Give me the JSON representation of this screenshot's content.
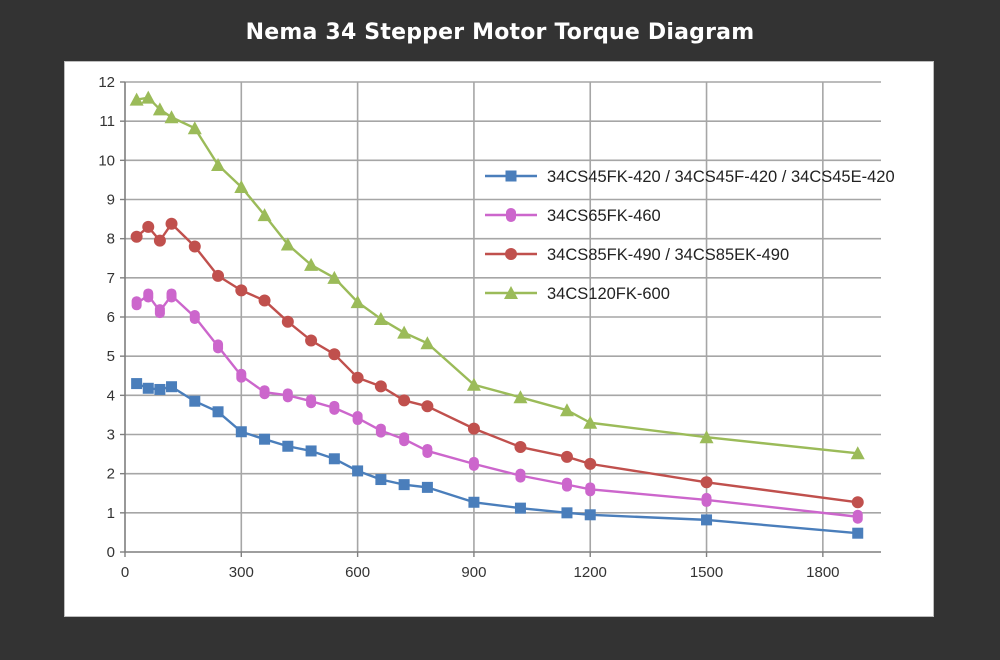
{
  "title": "Nema 34 Stepper Motor Torque Diagram",
  "colors": {
    "background": "#333333",
    "panel": "#ffffff",
    "grid": "#a6a6a6"
  },
  "chart_data": {
    "type": "line",
    "title": "",
    "xlabel": "",
    "ylabel": "",
    "xlim": [
      0,
      1950
    ],
    "ylim": [
      0,
      12
    ],
    "x_ticks": [
      0,
      300,
      600,
      900,
      1200,
      1500,
      1800
    ],
    "y_ticks": [
      0,
      1,
      2,
      3,
      4,
      5,
      6,
      7,
      8,
      9,
      10,
      11,
      12
    ],
    "grid": true,
    "legend_position": "right",
    "series": [
      {
        "name": "34CS45FK-420 / 34CS45F-420 / 34CS45E-420",
        "color": "#4a7ebb",
        "marker": "square",
        "x": [
          30,
          60,
          90,
          120,
          180,
          240,
          300,
          360,
          420,
          480,
          540,
          600,
          660,
          720,
          780,
          900,
          1020,
          1140,
          1200,
          1500,
          1890
        ],
        "y": [
          4.3,
          4.18,
          4.15,
          4.22,
          3.85,
          3.58,
          3.07,
          2.88,
          2.7,
          2.58,
          2.38,
          2.07,
          1.85,
          1.72,
          1.65,
          1.27,
          1.12,
          1.0,
          0.95,
          0.82,
          0.48
        ]
      },
      {
        "name": "34CS65FK-460",
        "color": "#cc66cc",
        "marker": "capsule",
        "x": [
          30,
          60,
          90,
          120,
          180,
          240,
          300,
          360,
          420,
          480,
          540,
          600,
          660,
          720,
          780,
          900,
          1020,
          1140,
          1200,
          1500,
          1890
        ],
        "y": [
          6.35,
          6.55,
          6.15,
          6.55,
          6.0,
          5.25,
          4.5,
          4.08,
          4.0,
          3.85,
          3.68,
          3.42,
          3.1,
          2.88,
          2.58,
          2.25,
          1.95,
          1.72,
          1.6,
          1.33,
          0.9
        ]
      },
      {
        "name": "34CS85FK-490 / 34CS85EK-490",
        "color": "#c0504d",
        "marker": "circle",
        "x": [
          30,
          60,
          90,
          120,
          180,
          240,
          300,
          360,
          420,
          480,
          540,
          600,
          660,
          720,
          780,
          900,
          1020,
          1140,
          1200,
          1500,
          1890
        ],
        "y": [
          8.05,
          8.3,
          7.95,
          8.38,
          7.8,
          7.05,
          6.68,
          6.42,
          5.88,
          5.4,
          5.05,
          4.45,
          4.23,
          3.87,
          3.72,
          3.15,
          2.68,
          2.43,
          2.25,
          1.78,
          1.27
        ]
      },
      {
        "name": "34CS120FK-600",
        "color": "#9bbb59",
        "marker": "triangle",
        "x": [
          30,
          60,
          90,
          120,
          180,
          240,
          300,
          360,
          420,
          480,
          540,
          600,
          660,
          720,
          780,
          900,
          1020,
          1140,
          1200,
          1500,
          1890
        ],
        "y": [
          11.55,
          11.6,
          11.3,
          11.1,
          10.82,
          9.88,
          9.32,
          8.6,
          7.85,
          7.33,
          7.0,
          6.38,
          5.95,
          5.6,
          5.33,
          4.27,
          3.95,
          3.62,
          3.3,
          2.93,
          2.52
        ]
      }
    ]
  }
}
